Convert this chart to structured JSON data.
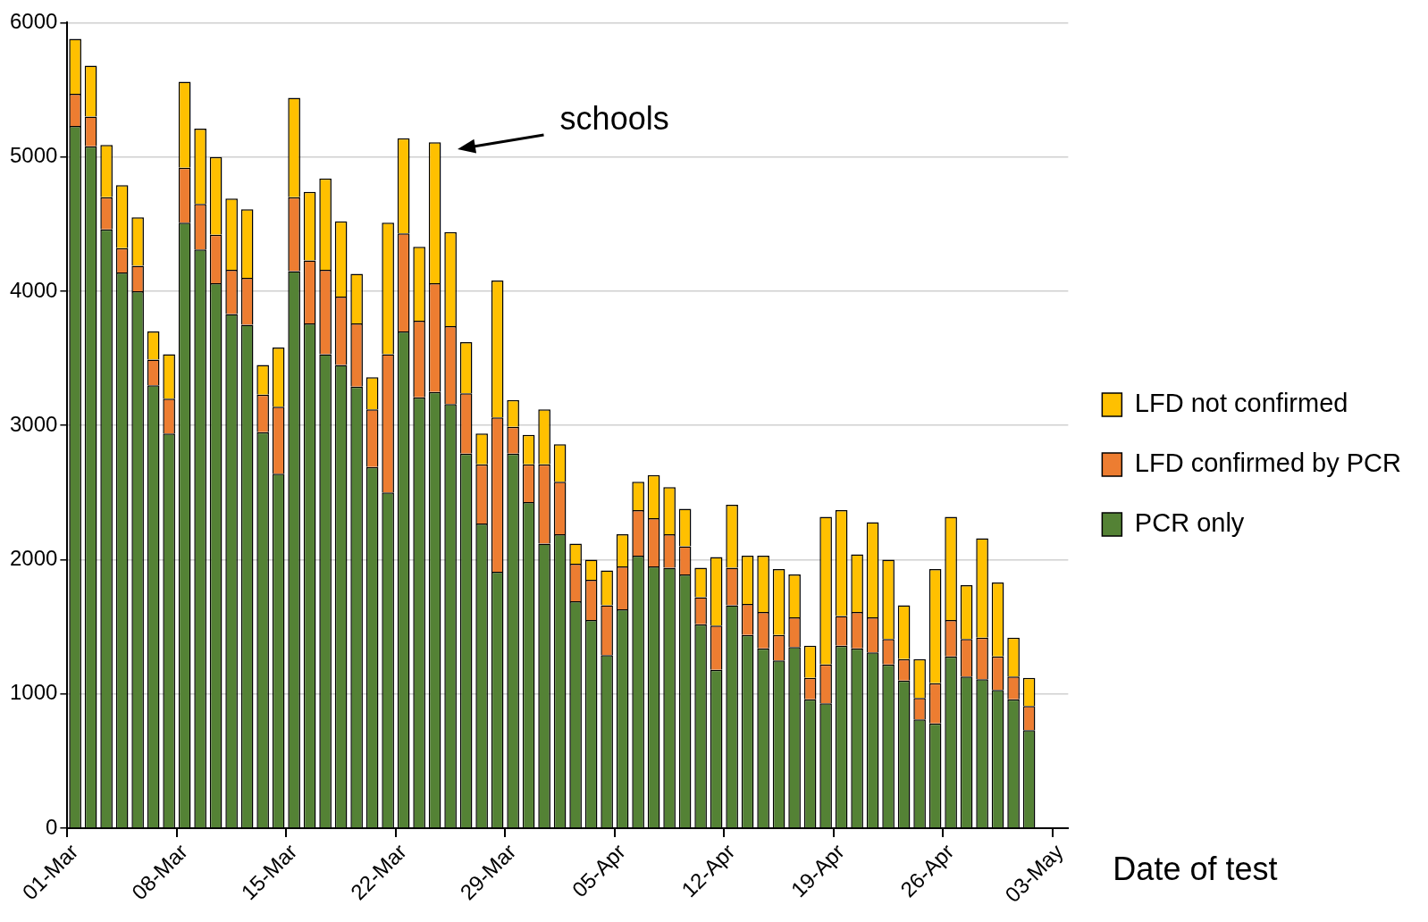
{
  "chart_data": {
    "type": "bar",
    "stacked": true,
    "xlabel": "Date of test",
    "categories": [
      "01-Mar",
      null,
      null,
      null,
      null,
      null,
      null,
      "08-Mar",
      null,
      null,
      null,
      null,
      null,
      null,
      "15-Mar",
      null,
      null,
      null,
      null,
      null,
      null,
      "22-Mar",
      null,
      null,
      null,
      null,
      null,
      null,
      "29-Mar",
      null,
      null,
      null,
      null,
      null,
      null,
      "05-Apr",
      null,
      null,
      null,
      null,
      null,
      null,
      "12-Apr",
      null,
      null,
      null,
      null,
      null,
      null,
      "19-Apr",
      null,
      null,
      null,
      null,
      null,
      null,
      "26-Apr",
      null,
      null,
      null,
      null,
      null,
      null,
      "03-May"
    ],
    "series": [
      {
        "name": "PCR only",
        "color": "#548235",
        "values": [
          5230,
          5080,
          4460,
          4140,
          4000,
          3300,
          2940,
          4510,
          4310,
          4060,
          3830,
          3750,
          2950,
          2640,
          4150,
          3760,
          3530,
          3450,
          3290,
          2690,
          2500,
          3700,
          3210,
          3250,
          3160,
          2790,
          2270,
          1910,
          2790,
          2430,
          2120,
          2190,
          1690,
          1550,
          1290,
          1630,
          2030,
          1950,
          1940,
          1890,
          1520,
          1180,
          1660,
          1440,
          1340,
          1250,
          1350,
          960,
          930,
          1360,
          1340,
          1310,
          1220,
          1100,
          810,
          780,
          1280,
          1130,
          1110,
          1030,
          960,
          730,
          null,
          null
        ]
      },
      {
        "name": "LFD confirmed by PCR",
        "color": "#ed7d31",
        "values": [
          240,
          220,
          240,
          180,
          190,
          190,
          260,
          410,
          340,
          360,
          330,
          350,
          280,
          500,
          550,
          470,
          630,
          510,
          470,
          430,
          1030,
          730,
          570,
          810,
          580,
          450,
          440,
          1150,
          200,
          280,
          590,
          390,
          280,
          300,
          370,
          320,
          340,
          360,
          250,
          210,
          200,
          330,
          280,
          230,
          270,
          190,
          220,
          160,
          290,
          220,
          270,
          260,
          190,
          160,
          160,
          300,
          270,
          280,
          310,
          250,
          170,
          180,
          null,
          null
        ]
      },
      {
        "name": "LFD not confirmed",
        "color": "#ffc000",
        "values": [
          410,
          380,
          390,
          470,
          360,
          210,
          330,
          640,
          560,
          580,
          530,
          510,
          220,
          440,
          740,
          510,
          680,
          560,
          370,
          240,
          980,
          710,
          550,
          1050,
          700,
          380,
          230,
          1020,
          200,
          220,
          410,
          280,
          150,
          150,
          260,
          240,
          210,
          320,
          350,
          280,
          220,
          510,
          470,
          360,
          420,
          490,
          320,
          240,
          1100,
          790,
          430,
          710,
          590,
          400,
          290,
          850,
          770,
          400,
          740,
          550,
          290,
          210,
          null,
          null
        ]
      }
    ],
    "ylim": [
      0,
      6000
    ],
    "yticks": [
      0,
      1000,
      2000,
      3000,
      4000,
      5000,
      6000
    ],
    "grid": "y",
    "legend": "right",
    "annotations": [
      "schools"
    ]
  }
}
